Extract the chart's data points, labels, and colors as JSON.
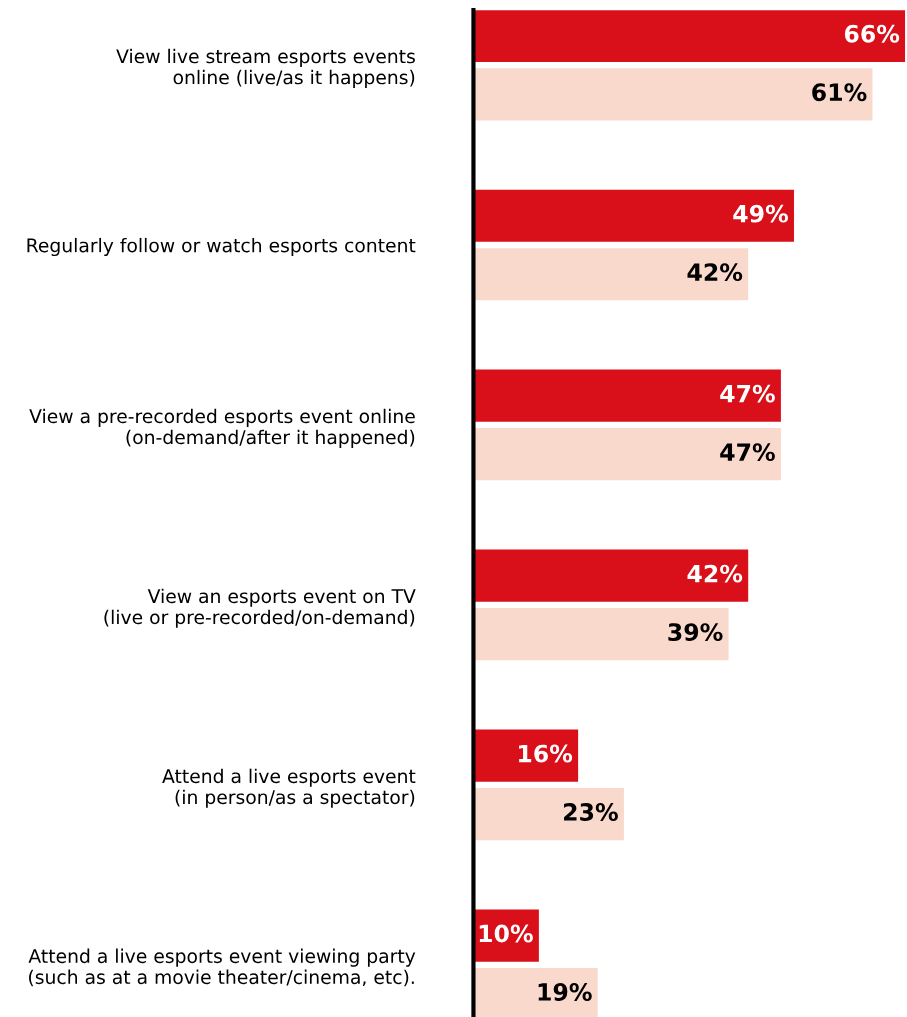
{
  "chart_data": {
    "type": "bar",
    "orientation": "horizontal",
    "categories": [
      "View live stream esports events\nonline (live/as it happens)",
      "Regularly follow or watch esports content",
      "View a pre-recorded esports event online\n(on-demand/after it happened)",
      "View an esports event on TV\n(live or pre-recorded/on-demand)",
      "Attend a live esports event\n(in person/as a spectator)",
      "Attend a live esports event viewing party\n(such as at a movie theater/cinema, etc)."
    ],
    "series": [
      {
        "color": "#d90f19",
        "values": [
          66,
          49,
          47,
          42,
          16,
          10
        ],
        "value_labels": [
          "66%",
          "49%",
          "47%",
          "42%",
          "16%",
          "10%"
        ]
      },
      {
        "color": "#f9d9cc",
        "values": [
          61,
          42,
          47,
          39,
          23,
          19
        ],
        "value_labels": [
          "61%",
          "42%",
          "47%",
          "39%",
          "23%",
          "19%"
        ]
      }
    ],
    "xlim": [
      0,
      66
    ],
    "tick_labels": "y",
    "grid": false
  }
}
